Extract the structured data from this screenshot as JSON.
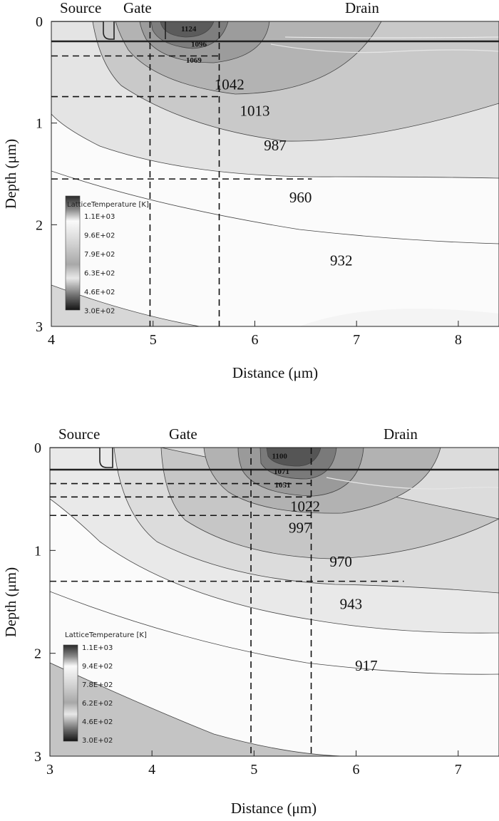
{
  "chart_data": [
    {
      "type": "heatmap",
      "title": "",
      "xlabel": "Distance (μm)",
      "ylabel": "Depth (μm)",
      "xlim": [
        4,
        8.4
      ],
      "ylim": [
        3,
        0
      ],
      "x_ticks": [
        "4",
        "5",
        "6",
        "7",
        "8"
      ],
      "y_ticks": [
        "0",
        "1",
        "2",
        "3"
      ],
      "region_labels": [
        "Source",
        "Gate",
        "Drain"
      ],
      "contours": [
        {
          "value": "1124",
          "x": 5.35,
          "y": 0.07
        },
        {
          "value": "1096",
          "x": 5.45,
          "y": 0.22
        },
        {
          "value": "1069",
          "x": 5.4,
          "y": 0.38
        },
        {
          "value": "1042",
          "x": 5.75,
          "y": 0.62
        },
        {
          "value": "1013",
          "x": 6.0,
          "y": 0.88
        },
        {
          "value": "987",
          "x": 6.2,
          "y": 1.22
        },
        {
          "value": "960",
          "x": 6.45,
          "y": 1.73
        },
        {
          "value": "932",
          "x": 6.85,
          "y": 2.35
        }
      ],
      "guide_lines": {
        "vertical": [
          4.97,
          5.65
        ],
        "horizontal": [
          0.34,
          0.74,
          1.55
        ]
      },
      "legend": {
        "title": "LatticeTemperature [K]",
        "entries": [
          "1.1E+03",
          "9.6E+02",
          "7.9E+02",
          "6.3E+02",
          "4.6E+02",
          "3.0E+02"
        ]
      }
    },
    {
      "type": "heatmap",
      "title": "",
      "xlabel": "Distance (μm)",
      "ylabel": "Depth (μm)",
      "xlim": [
        3,
        7.4
      ],
      "ylim": [
        3,
        0
      ],
      "x_ticks": [
        "3",
        "4",
        "5",
        "6",
        "7"
      ],
      "y_ticks": [
        "0",
        "1",
        "2",
        "3"
      ],
      "region_labels": [
        "Source",
        "Gate",
        "Drain"
      ],
      "contours": [
        {
          "value": "1100",
          "x": 5.25,
          "y": 0.08
        },
        {
          "value": "1071",
          "x": 5.27,
          "y": 0.23
        },
        {
          "value": "1051",
          "x": 5.28,
          "y": 0.36
        },
        {
          "value": "1022",
          "x": 5.5,
          "y": 0.57
        },
        {
          "value": "997",
          "x": 5.45,
          "y": 0.78
        },
        {
          "value": "970",
          "x": 5.85,
          "y": 1.11
        },
        {
          "value": "943",
          "x": 5.95,
          "y": 1.52
        },
        {
          "value": "917",
          "x": 6.1,
          "y": 2.12
        }
      ],
      "guide_lines": {
        "vertical": [
          4.97,
          5.56
        ],
        "horizontal": [
          0.35,
          0.48,
          0.66,
          1.3
        ]
      },
      "legend": {
        "title": "LatticeTemperature [K]",
        "entries": [
          "1.1E+03",
          "9.4E+02",
          "7.8E+02",
          "6.2E+02",
          "4.6E+02",
          "3.0E+02"
        ]
      }
    }
  ]
}
